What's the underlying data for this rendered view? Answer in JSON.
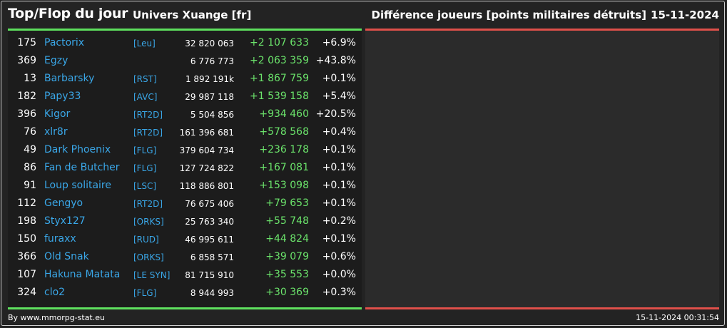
{
  "header": {
    "title": "Top/Flop du jour",
    "universe": "Univers Xuange [fr]",
    "diff_title": "Différence joueurs [points militaires détruits]",
    "date": "15-11-2024"
  },
  "colors": {
    "accent_green": "#5ee15e",
    "accent_red": "#e0504a",
    "link_blue": "#3aa7e8",
    "background": "#232323"
  },
  "top_rows": [
    {
      "rank": "175",
      "name": "Pactorix",
      "alliance": "[Leu]",
      "points": "32 820 063",
      "diff": "+2 107 633",
      "pct": "+6.9%"
    },
    {
      "rank": "369",
      "name": "Egzy",
      "alliance": "",
      "points": "6 776 773",
      "diff": "+2 063 359",
      "pct": "+43.8%"
    },
    {
      "rank": "13",
      "name": "Barbarsky",
      "alliance": "[RST]",
      "points": "1 892 191k",
      "diff": "+1 867 759",
      "pct": "+0.1%"
    },
    {
      "rank": "182",
      "name": "Papy33",
      "alliance": "[AVC]",
      "points": "29 987 118",
      "diff": "+1 539 158",
      "pct": "+5.4%"
    },
    {
      "rank": "396",
      "name": "Kigor",
      "alliance": "[RT2D]",
      "points": "5 504 856",
      "diff": "+934 460",
      "pct": "+20.5%"
    },
    {
      "rank": "76",
      "name": "xlr8r",
      "alliance": "[RT2D]",
      "points": "161 396 681",
      "diff": "+578 568",
      "pct": "+0.4%"
    },
    {
      "rank": "49",
      "name": "Dark Phoenix",
      "alliance": "[FLG]",
      "points": "379 604 734",
      "diff": "+236 178",
      "pct": "+0.1%"
    },
    {
      "rank": "86",
      "name": "Fan de Butcher",
      "alliance": "[FLG]",
      "points": "127 724 822",
      "diff": "+167 081",
      "pct": "+0.1%"
    },
    {
      "rank": "91",
      "name": "Loup solitaire",
      "alliance": "[LSC]",
      "points": "118 886 801",
      "diff": "+153 098",
      "pct": "+0.1%"
    },
    {
      "rank": "112",
      "name": "Gengyo",
      "alliance": "[RT2D]",
      "points": "76 675 406",
      "diff": "+79 653",
      "pct": "+0.1%"
    },
    {
      "rank": "198",
      "name": "Styx127",
      "alliance": "[ORKS]",
      "points": "25 763 340",
      "diff": "+55 748",
      "pct": "+0.2%"
    },
    {
      "rank": "150",
      "name": "furaxx",
      "alliance": "[RUD]",
      "points": "46 995 611",
      "diff": "+44 824",
      "pct": "+0.1%"
    },
    {
      "rank": "366",
      "name": "Old Snak",
      "alliance": "[ORKS]",
      "points": "6 858 571",
      "diff": "+39 079",
      "pct": "+0.6%"
    },
    {
      "rank": "107",
      "name": "Hakuna Matata",
      "alliance": "[LE SYN]",
      "points": "81 715 910",
      "diff": "+35 553",
      "pct": "+0.0%"
    },
    {
      "rank": "324",
      "name": "clo2",
      "alliance": "[FLG]",
      "points": "8 944 993",
      "diff": "+30 369",
      "pct": "+0.3%"
    }
  ],
  "footer": {
    "source": "By www.mmorpg-stat.eu",
    "timestamp": "15-11-2024 00:31:54"
  }
}
